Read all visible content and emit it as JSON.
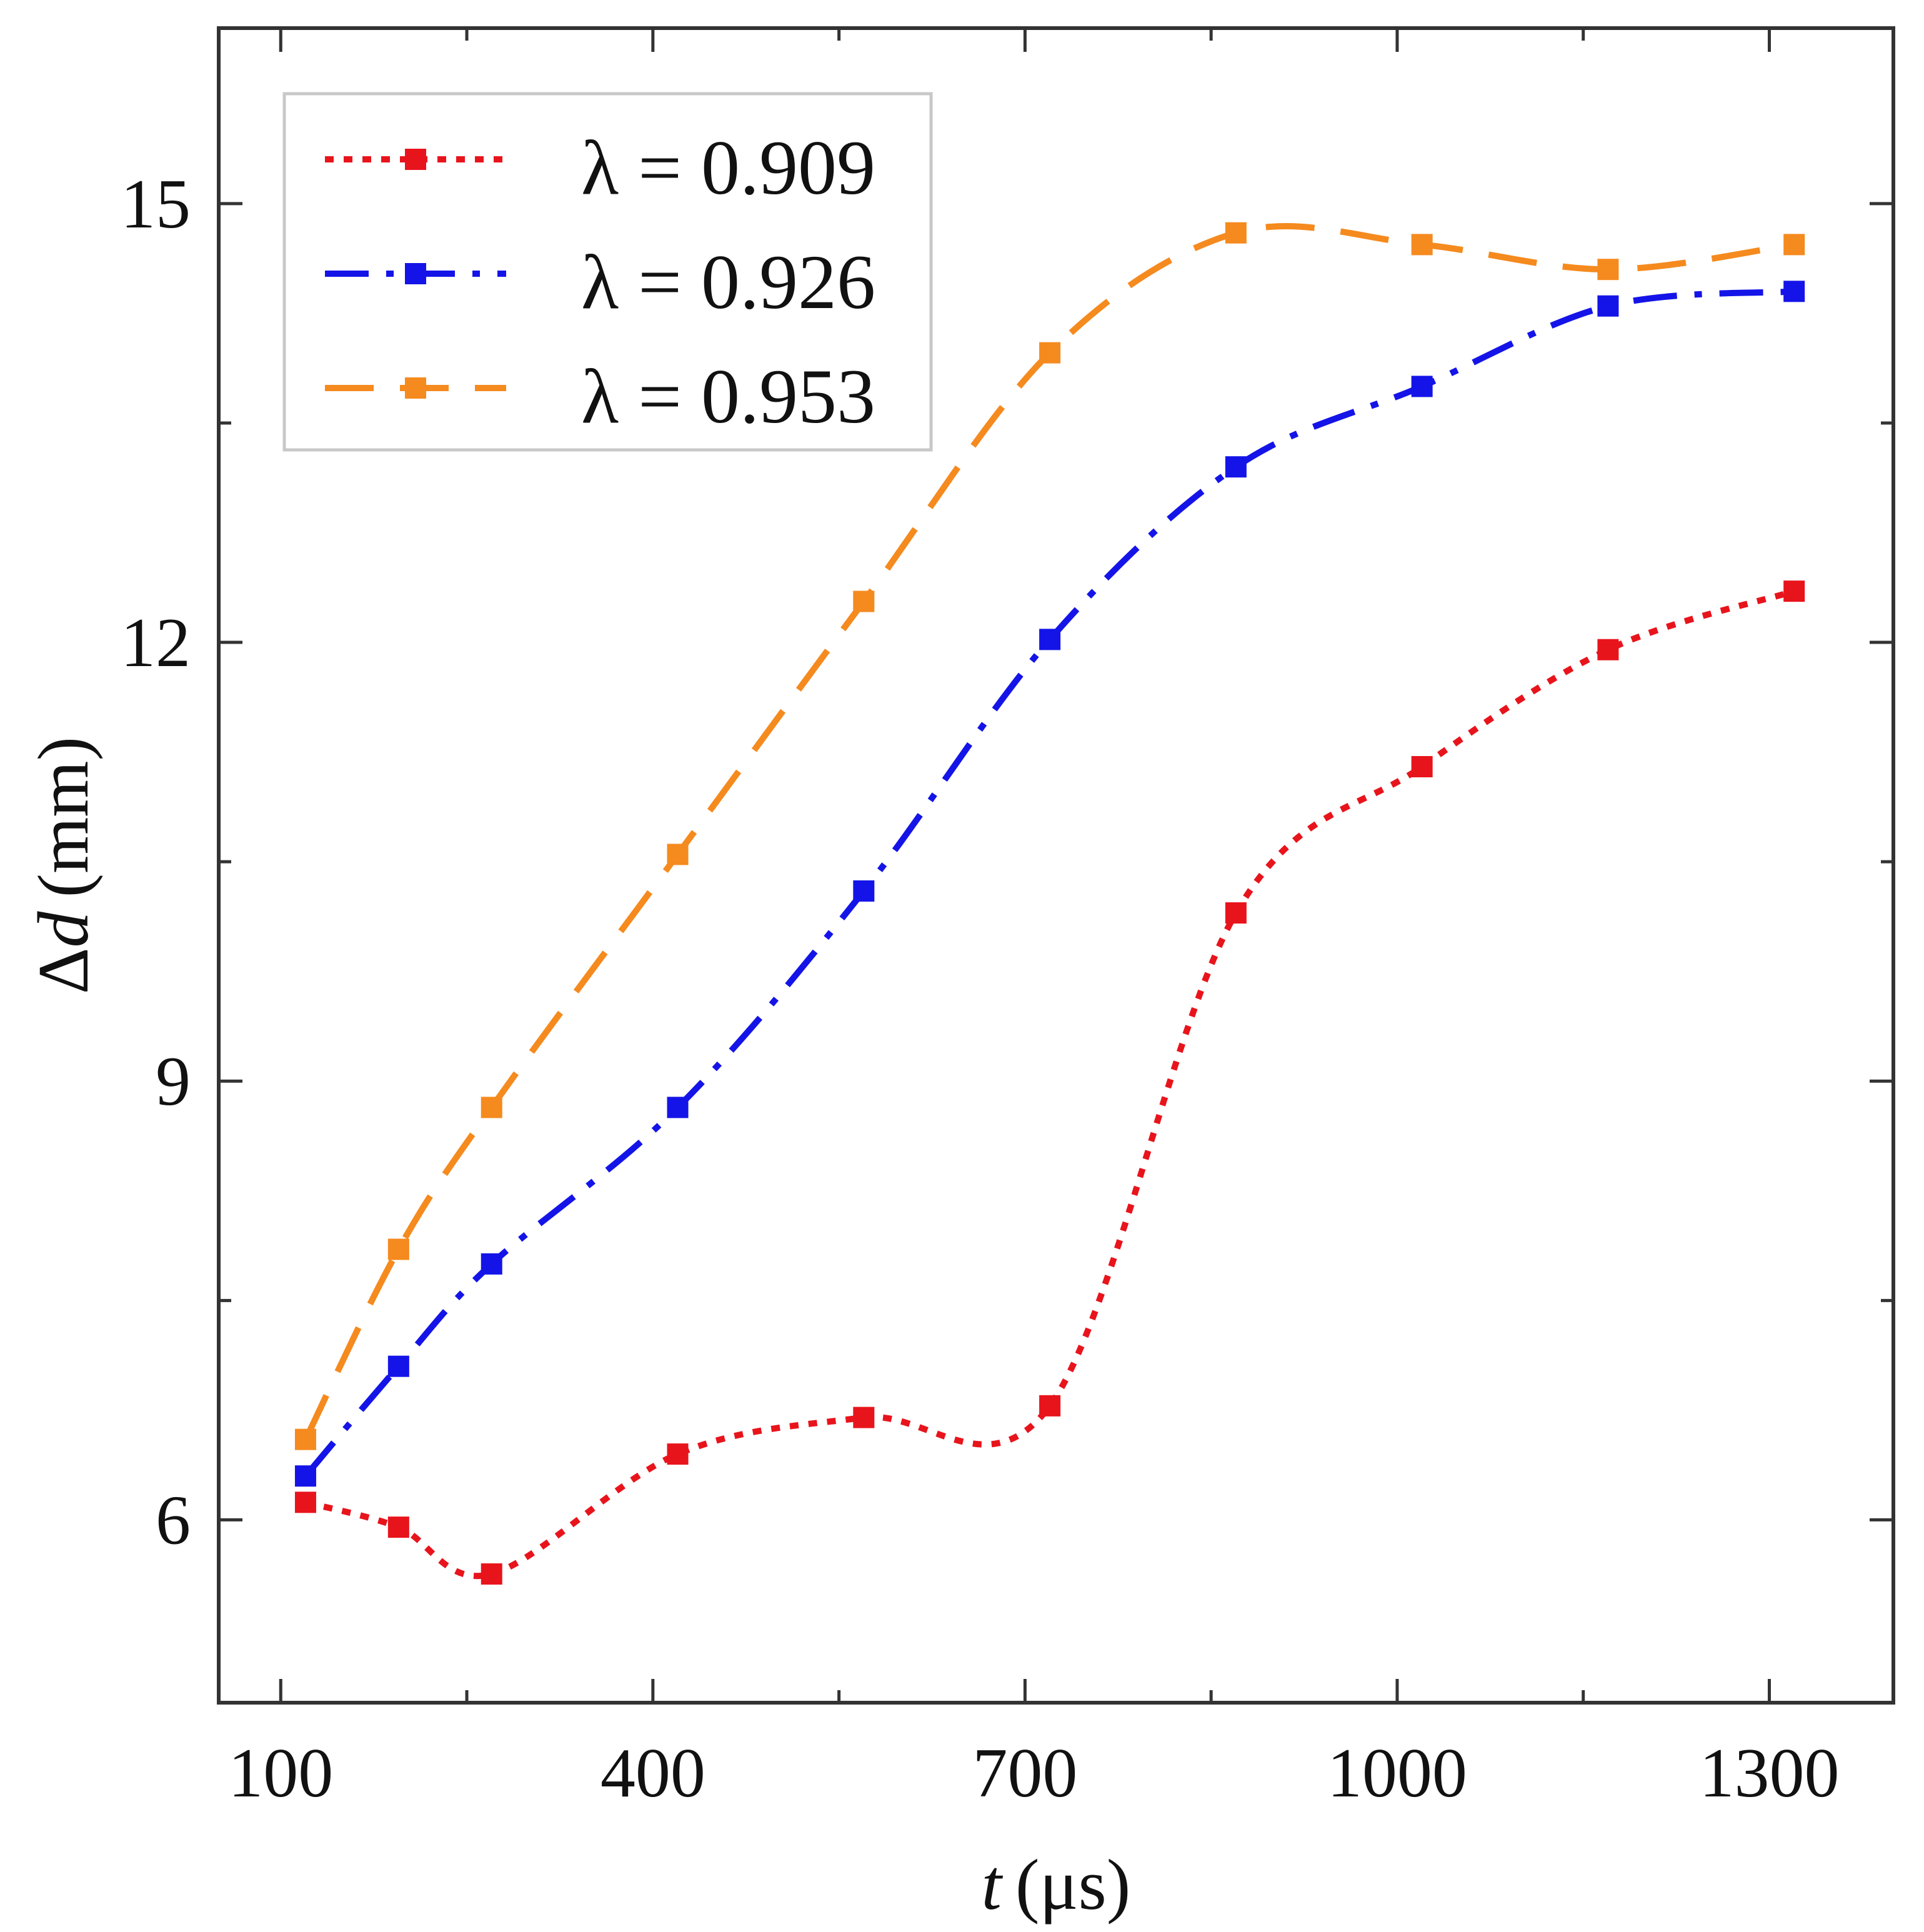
{
  "chart_data": {
    "type": "line",
    "xlabel": "t (μs)",
    "xlabel_italic": "t",
    "xlabel_unit": "(μs)",
    "ylabel": "Δd (mm)",
    "ylabel_delta": "Δ",
    "ylabel_italic": "d",
    "ylabel_unit": "(mm)",
    "xlim": [
      50,
      1400
    ],
    "ylim": [
      4.75,
      16.2
    ],
    "x_ticks": [
      100,
      400,
      700,
      1000,
      1300
    ],
    "x_tick_labels": [
      "100",
      "400",
      "700",
      "1000",
      "1300"
    ],
    "x_minor_ticks": [
      250,
      550,
      850,
      1150
    ],
    "y_ticks": [
      6,
      9,
      12,
      15
    ],
    "y_tick_labels": [
      "6",
      "9",
      "12",
      "15"
    ],
    "y_minor_ticks": [
      7.5,
      10.5,
      13.5
    ],
    "grid": false,
    "legend_position": "top-left",
    "x": [
      120,
      195,
      270,
      420,
      570,
      720,
      870,
      1020,
      1170,
      1320
    ],
    "series": [
      {
        "name": "λ = 0.909",
        "color": "#e8141c",
        "line_style": "dotted",
        "marker": "square",
        "values": [
          6.12,
          5.95,
          5.63,
          6.45,
          6.7,
          6.78,
          10.15,
          11.15,
          11.95,
          12.35
        ]
      },
      {
        "name": "λ = 0.926",
        "color": "#1414e8",
        "line_style": "dash-dot",
        "marker": "square",
        "values": [
          6.3,
          7.05,
          7.75,
          8.82,
          10.3,
          12.02,
          13.2,
          13.75,
          14.3,
          14.4
        ]
      },
      {
        "name": "λ = 0.953",
        "color": "#f58a1e",
        "line_style": "dashed",
        "marker": "square",
        "values": [
          6.55,
          7.85,
          8.82,
          10.55,
          12.28,
          13.98,
          14.8,
          14.72,
          14.55,
          14.72
        ]
      }
    ]
  }
}
